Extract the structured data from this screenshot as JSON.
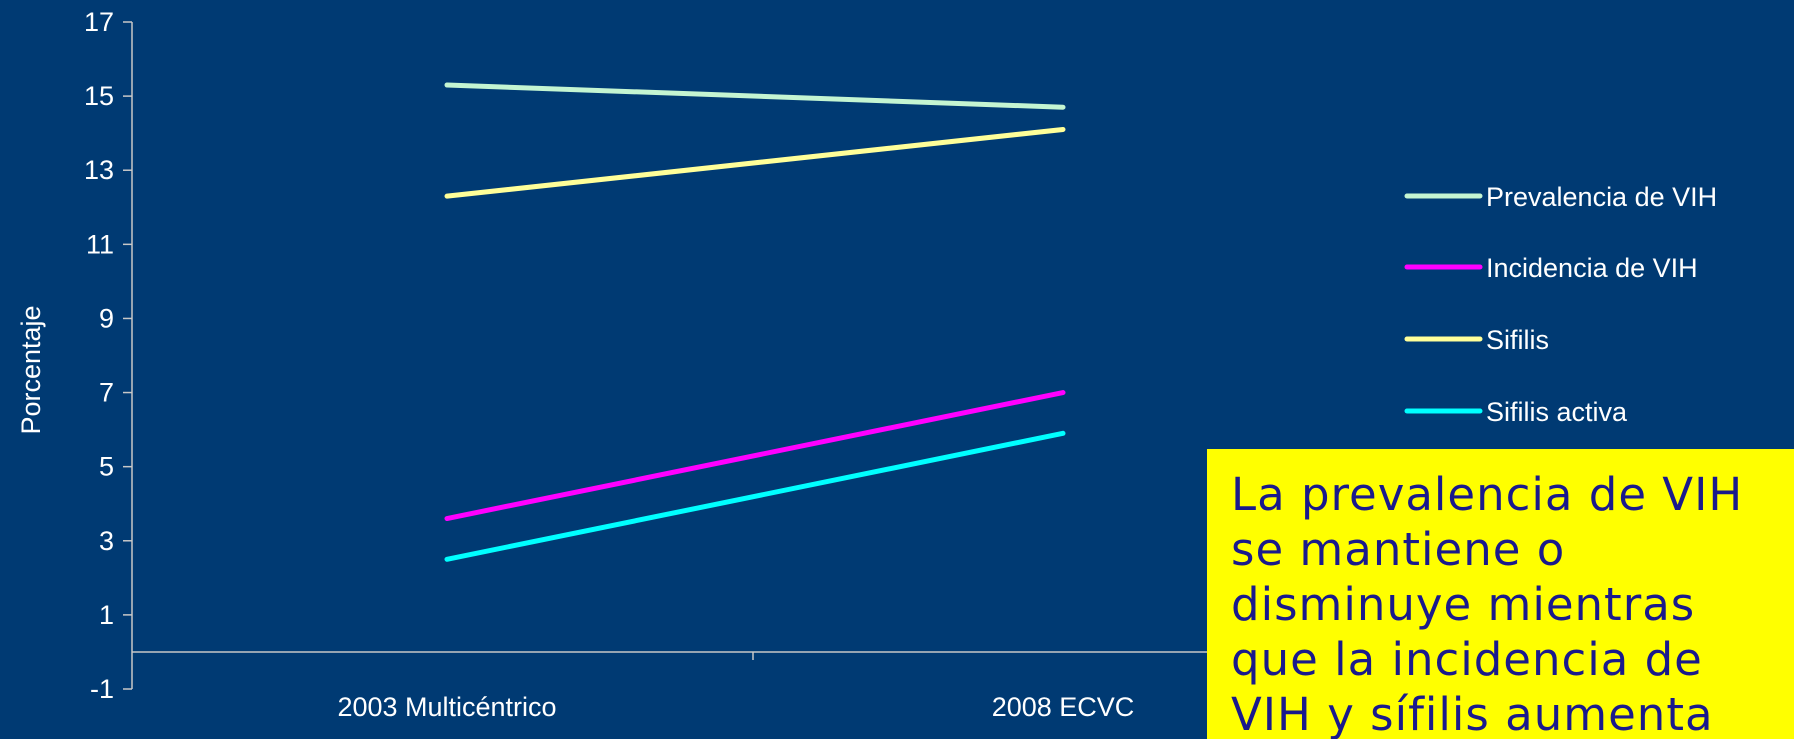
{
  "chart_data": {
    "type": "line",
    "categories": [
      "2003 Multicéntrico",
      "2008 ECVC"
    ],
    "series": [
      {
        "name": "Prevalencia de VIH",
        "values": [
          15.3,
          14.7
        ],
        "color": "#c4f5d2"
      },
      {
        "name": "Incidencia de VIH",
        "values": [
          3.6,
          7.0
        ],
        "color": "#ff00ff"
      },
      {
        "name": "Sifilis",
        "values": [
          12.3,
          14.1
        ],
        "color": "#ffff99"
      },
      {
        "name": "Sifilis activa",
        "values": [
          2.5,
          5.9
        ],
        "color": "#00ffff"
      }
    ],
    "ylabel": "Porcentaje",
    "ylim": [
      -1,
      17
    ],
    "yticks": [
      "-1",
      "1",
      "3",
      "5",
      "7",
      "9",
      "11",
      "13",
      "15",
      "17"
    ],
    "legend_position": "right",
    "grid": false
  },
  "callout": {
    "text": "La prevalencia de VIH se mantiene o disminuye mientras que la incidencia de VIH y sífilis aumenta",
    "background": "#ffff00",
    "text_color": "#1a1a8c"
  }
}
